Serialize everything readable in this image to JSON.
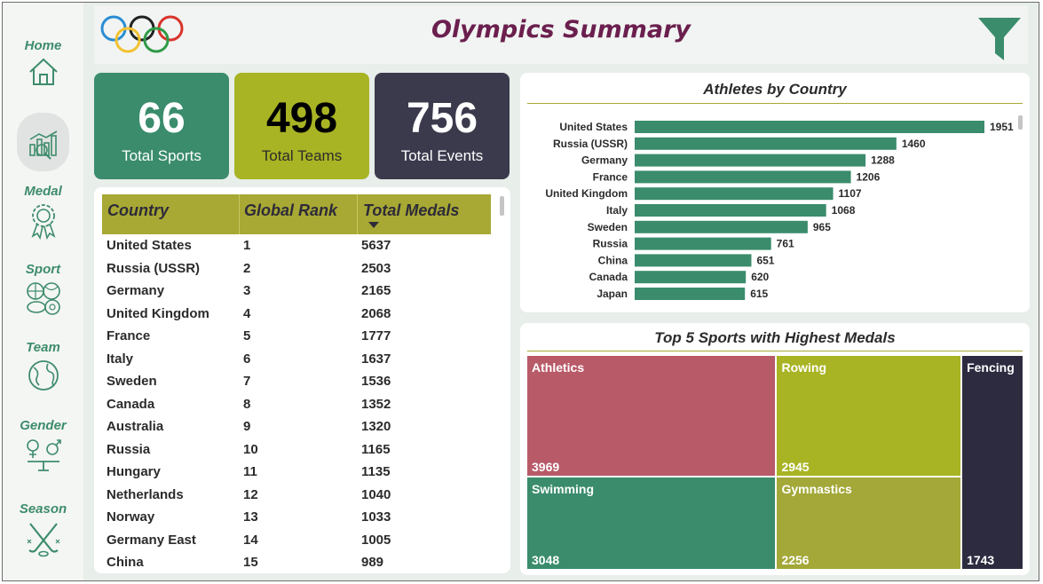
{
  "header": {
    "title": "Olympics Summary"
  },
  "sidebar": {
    "items": [
      {
        "label": "Home"
      },
      {
        "label": ""
      },
      {
        "label": "Medal"
      },
      {
        "label": "Sport"
      },
      {
        "label": "Team"
      },
      {
        "label": "Gender"
      },
      {
        "label": "Season"
      }
    ]
  },
  "kpis": [
    {
      "value": "66",
      "label": "Total Sports",
      "color": "#3a8c6c"
    },
    {
      "value": "498",
      "label": "Total Teams",
      "color": "#a8b423"
    },
    {
      "value": "756",
      "label": "Total Events",
      "color": "#3b3a4d"
    }
  ],
  "table": {
    "headers": [
      "Country",
      "Global Rank",
      "Total Medals"
    ],
    "rows": [
      [
        "United States",
        "1",
        "5637"
      ],
      [
        "Russia (USSR)",
        "2",
        "2503"
      ],
      [
        "Germany",
        "3",
        "2165"
      ],
      [
        "United Kingdom",
        "4",
        "2068"
      ],
      [
        "France",
        "5",
        "1777"
      ],
      [
        "Italy",
        "6",
        "1637"
      ],
      [
        "Sweden",
        "7",
        "1536"
      ],
      [
        "Canada",
        "8",
        "1352"
      ],
      [
        "Australia",
        "9",
        "1320"
      ],
      [
        "Russia",
        "10",
        "1165"
      ],
      [
        "Hungary",
        "11",
        "1135"
      ],
      [
        "Netherlands",
        "12",
        "1040"
      ],
      [
        "Norway",
        "13",
        "1033"
      ],
      [
        "Germany East",
        "14",
        "1005"
      ],
      [
        "China",
        "15",
        "989"
      ]
    ]
  },
  "chart_data": [
    {
      "type": "bar",
      "orientation": "horizontal",
      "title": "Athletes by Country",
      "categories": [
        "United States",
        "Russia (USSR)",
        "Germany",
        "France",
        "United Kingdom",
        "Italy",
        "Sweden",
        "Russia",
        "China",
        "Canada",
        "Japan"
      ],
      "values": [
        1951,
        1460,
        1288,
        1206,
        1107,
        1068,
        965,
        761,
        651,
        620,
        615
      ],
      "bar_color": "#3a8c6c",
      "grid": false
    },
    {
      "type": "treemap",
      "title": "Top 5 Sports with Highest Medals",
      "items": [
        {
          "name": "Athletics",
          "value": 3969,
          "color": "#b85a68"
        },
        {
          "name": "Swimming",
          "value": 3048,
          "color": "#3a8c6c"
        },
        {
          "name": "Rowing",
          "value": 2945,
          "color": "#a8b423"
        },
        {
          "name": "Gymnastics",
          "value": 2256,
          "color": "#a3a838"
        },
        {
          "name": "Fencing",
          "value": 1743,
          "color": "#2d2b40"
        }
      ]
    }
  ]
}
